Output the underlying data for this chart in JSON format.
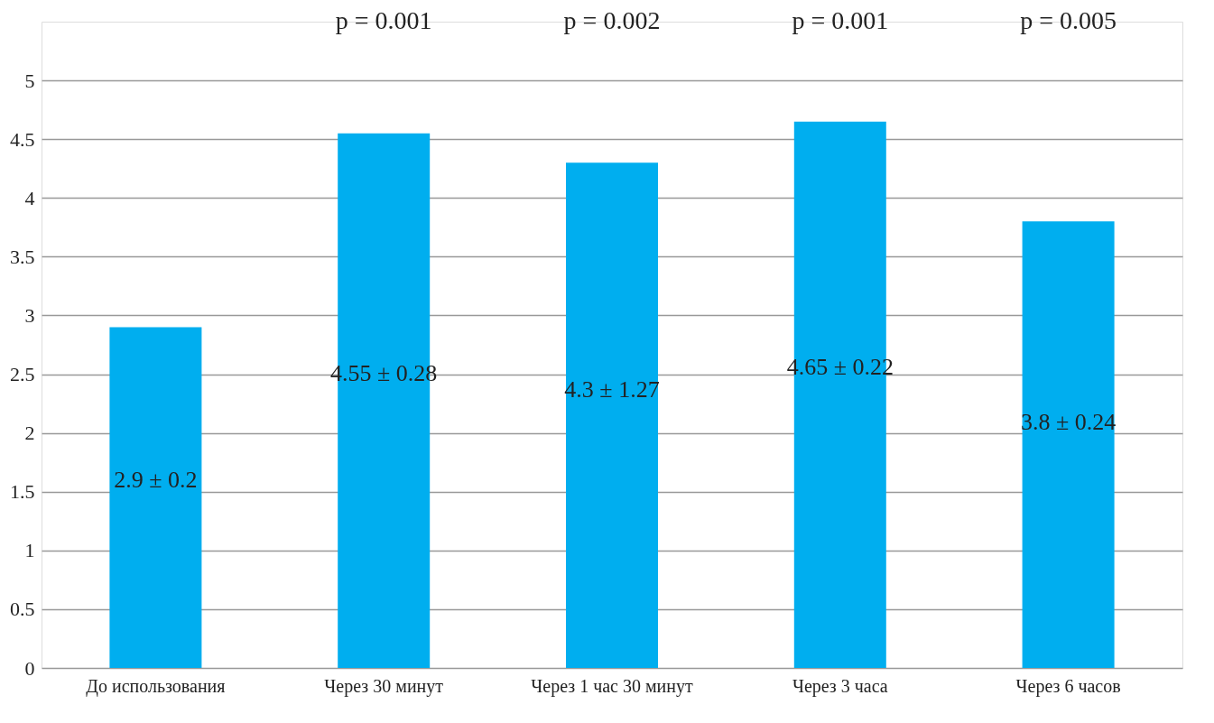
{
  "chart_data": {
    "type": "bar",
    "categories": [
      "До использования",
      "Через 30 минут",
      "Через 1 час 30 минут",
      "Через 3 часа",
      "Через 6 часов"
    ],
    "values": [
      2.9,
      4.55,
      4.3,
      4.65,
      3.8
    ],
    "value_labels": [
      "2.9 ± 0.2",
      "4.55 ± 0.28",
      "4.3 ± 1.27",
      "4.65 ± 0.22",
      "3.8 ± 0.24"
    ],
    "color": "#00aeef",
    "ylim": [
      0,
      5.5
    ],
    "yticks": [
      0,
      0.5,
      1,
      1.5,
      2,
      2.5,
      3,
      3.5,
      4,
      4.5,
      5
    ],
    "grid": "y",
    "annotations": [
      "p = 0.001",
      "p = 0.002",
      "p = 0.001",
      "p = 0.005"
    ]
  }
}
